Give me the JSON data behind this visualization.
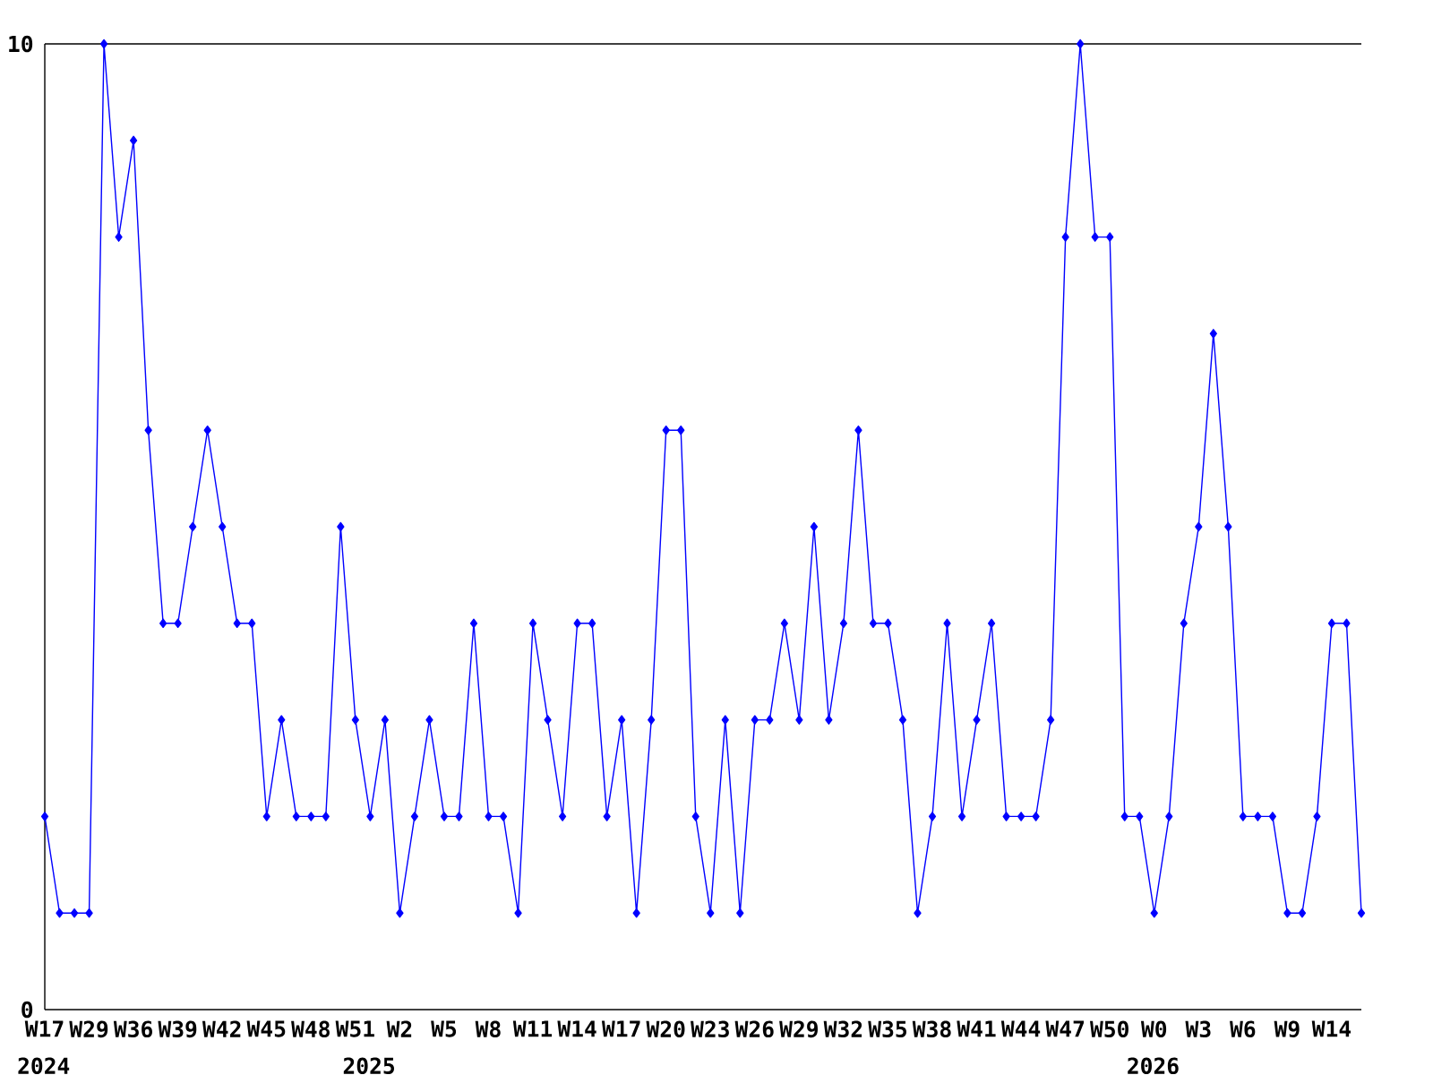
{
  "chart_data": {
    "type": "line",
    "categories": [
      "W17",
      null,
      null,
      "W29",
      null,
      null,
      "W36",
      null,
      null,
      "W39",
      null,
      null,
      "W42",
      null,
      null,
      "W45",
      null,
      null,
      "W48",
      null,
      null,
      "W51",
      null,
      null,
      "W2",
      null,
      null,
      "W5",
      null,
      null,
      "W8",
      null,
      null,
      "W11",
      null,
      null,
      "W14",
      null,
      null,
      "W17",
      null,
      null,
      "W20",
      null,
      null,
      "W23",
      null,
      null,
      "W26",
      null,
      null,
      "W29",
      null,
      null,
      "W32",
      null,
      null,
      "W35",
      null,
      null,
      "W38",
      null,
      null,
      "W41",
      null,
      null,
      "W44",
      null,
      null,
      "W47",
      null,
      null,
      "W50",
      null,
      null,
      "W0",
      null,
      null,
      "W3",
      null,
      null,
      "W6",
      null,
      null,
      "W9",
      null,
      null,
      "W14",
      null,
      null
    ],
    "series": [
      {
        "color": "#0000ff",
        "values": [
          2,
          1,
          1,
          1,
          10,
          8,
          9,
          6,
          4,
          4,
          5,
          6,
          5,
          4,
          4,
          2,
          3,
          2,
          2,
          2,
          5,
          3,
          2,
          3,
          1,
          2,
          3,
          2,
          2,
          4,
          2,
          2,
          1,
          4,
          3,
          2,
          4,
          4,
          2,
          3,
          1,
          3,
          6,
          6,
          2,
          1,
          3,
          1,
          3,
          3,
          4,
          3,
          5,
          3,
          4,
          6,
          4,
          4,
          3,
          1,
          2,
          4,
          2,
          3,
          4,
          2,
          2,
          2,
          3,
          8,
          10,
          8,
          8,
          2,
          2,
          1,
          2,
          4,
          5,
          7,
          5,
          2,
          2,
          2,
          1,
          1,
          2,
          4,
          4,
          1
        ]
      }
    ],
    "ylim": [
      0,
      10
    ],
    "yticks": [
      0,
      10
    ],
    "marker": "diamond",
    "line_style": "solid",
    "annotations": [
      "2024",
      "2025",
      "2026"
    ]
  }
}
